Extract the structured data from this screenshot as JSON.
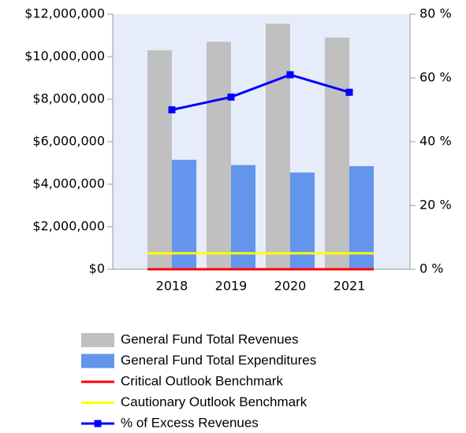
{
  "chart_data": {
    "type": "bar",
    "categories": [
      "2018",
      "2019",
      "2020",
      "2021"
    ],
    "series": [
      {
        "name": "General Fund Total Revenues",
        "type": "bar",
        "color": "#c0c0c0",
        "values": [
          10300000,
          10700000,
          11550000,
          10900000
        ]
      },
      {
        "name": "General Fund Total Expenditures",
        "type": "bar",
        "color": "#6495ed",
        "values": [
          5150000,
          4900000,
          4550000,
          4850000
        ]
      },
      {
        "name": "Critical Outlook Benchmark",
        "type": "benchmark",
        "axis": "y2",
        "color": "#ff0000",
        "values": [
          0,
          0,
          0,
          0
        ]
      },
      {
        "name": "Cautionary Outlook Benchmark",
        "type": "benchmark",
        "axis": "y2",
        "color": "#ffff00",
        "values": [
          5,
          5,
          5,
          5
        ]
      },
      {
        "name": "% of Excess Revenues",
        "type": "line",
        "axis": "y2",
        "color": "#0000ff",
        "values": [
          50,
          54,
          61,
          55.5
        ]
      }
    ],
    "ylim": [
      0,
      12000000
    ],
    "yticks": [
      {
        "value": 0,
        "label": "$0"
      },
      {
        "value": 2000000,
        "label": "$2,000,000"
      },
      {
        "value": 4000000,
        "label": "$4,000,000"
      },
      {
        "value": 6000000,
        "label": "$6,000,000"
      },
      {
        "value": 8000000,
        "label": "$8,000,000"
      },
      {
        "value": 10000000,
        "label": "$10,000,000"
      },
      {
        "value": 12000000,
        "label": "$12,000,000"
      }
    ],
    "y2lim": [
      0,
      80
    ],
    "y2ticks": [
      {
        "value": 0,
        "label": "0 %"
      },
      {
        "value": 20,
        "label": "20 %"
      },
      {
        "value": 40,
        "label": "40 %"
      },
      {
        "value": 60,
        "label": "60 %"
      },
      {
        "value": 80,
        "label": "80 %"
      }
    ],
    "grid": false
  }
}
